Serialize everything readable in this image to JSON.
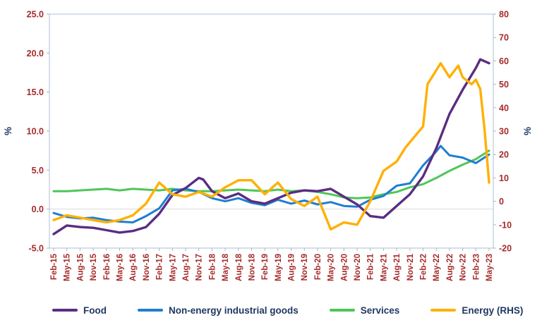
{
  "chart_data": {
    "type": "line",
    "title": "",
    "grid": false,
    "legend_position": "bottom",
    "left_axis": {
      "label": "%",
      "min": -5,
      "max": 25,
      "tick_values": [
        25,
        20,
        15,
        10,
        5,
        0,
        -5
      ],
      "tick_labels": [
        "25.0",
        "20.0",
        "15.0",
        "10.0",
        "5.0",
        "0.0",
        "-5.0"
      ]
    },
    "right_axis": {
      "label": "%",
      "min": -20,
      "max": 80,
      "tick_values": [
        80,
        70,
        60,
        50,
        40,
        30,
        20,
        10,
        0,
        -10,
        -20
      ],
      "tick_labels": [
        "80",
        "70",
        "60",
        "50",
        "40",
        "30",
        "20",
        "10",
        "0",
        "-10",
        "-20"
      ]
    },
    "x_axis": {
      "range": [
        0,
        99
      ],
      "tick_positions": [
        0,
        3,
        6,
        9,
        12,
        15,
        18,
        21,
        24,
        27,
        30,
        33,
        36,
        39,
        42,
        45,
        48,
        51,
        54,
        57,
        60,
        63,
        66,
        69,
        72,
        75,
        78,
        81,
        84,
        87,
        90,
        93,
        96,
        99
      ],
      "tick_labels": [
        "Feb-15",
        "May-15",
        "Aug-15",
        "Nov-15",
        "Feb-16",
        "May-16",
        "Aug-16",
        "Nov-16",
        "Feb-17",
        "May-17",
        "Aug-17",
        "Nov-17",
        "Feb-18",
        "May-18",
        "Aug-18",
        "Nov-18",
        "Feb-19",
        "May-19",
        "Aug-19",
        "Nov-19",
        "Feb-20",
        "May-20",
        "Aug-20",
        "Nov-20",
        "Feb-21",
        "May-21",
        "Aug-21",
        "Nov-21",
        "Feb-22",
        "May-22",
        "Aug-22",
        "Nov-22",
        "Feb-23",
        "May-23"
      ]
    },
    "series": [
      {
        "name": "Food",
        "axis": "left",
        "color": "#5A2D82",
        "x": [
          0,
          3,
          6,
          9,
          12,
          15,
          18,
          21,
          24,
          27,
          30,
          33,
          34,
          36,
          39,
          42,
          45,
          48,
          51,
          54,
          57,
          60,
          63,
          66,
          69,
          72,
          75,
          78,
          81,
          84,
          87,
          90,
          93,
          96,
          97,
          99
        ],
        "values": [
          -3.2,
          -2.1,
          -2.3,
          -2.4,
          -2.7,
          -3.0,
          -2.8,
          -2.3,
          -0.6,
          1.8,
          2.7,
          4.0,
          3.8,
          2.3,
          1.4,
          2.0,
          1.0,
          0.7,
          1.4,
          2.1,
          2.4,
          2.3,
          2.6,
          1.6,
          0.6,
          -0.9,
          -1.1,
          0.4,
          1.9,
          4.2,
          7.8,
          12.2,
          15.3,
          18.1,
          19.2,
          18.7
        ]
      },
      {
        "name": "Non-energy industrial goods",
        "axis": "left",
        "color": "#1F7ED0",
        "x": [
          0,
          3,
          6,
          9,
          12,
          15,
          18,
          21,
          24,
          27,
          30,
          33,
          36,
          39,
          42,
          45,
          48,
          51,
          54,
          57,
          60,
          63,
          66,
          69,
          72,
          75,
          78,
          81,
          84,
          87,
          88,
          90,
          93,
          96,
          99
        ],
        "values": [
          -0.5,
          -1.0,
          -1.2,
          -1.1,
          -1.4,
          -1.6,
          -1.7,
          -0.9,
          0.1,
          2.4,
          2.6,
          2.2,
          1.4,
          1.0,
          1.4,
          0.8,
          0.5,
          1.2,
          0.7,
          1.1,
          0.6,
          0.9,
          0.4,
          0.3,
          1.2,
          1.7,
          3.0,
          3.3,
          5.6,
          7.4,
          8.1,
          6.9,
          6.6,
          5.9,
          7.0
        ]
      },
      {
        "name": "Services",
        "axis": "left",
        "color": "#4FC657",
        "x": [
          0,
          3,
          6,
          9,
          12,
          15,
          18,
          21,
          24,
          27,
          30,
          33,
          36,
          39,
          42,
          45,
          48,
          51,
          54,
          57,
          60,
          63,
          66,
          69,
          72,
          75,
          78,
          81,
          84,
          87,
          90,
          93,
          96,
          99
        ],
        "values": [
          2.3,
          2.3,
          2.4,
          2.5,
          2.6,
          2.4,
          2.6,
          2.5,
          2.4,
          2.6,
          2.4,
          2.3,
          2.3,
          2.4,
          2.5,
          2.4,
          2.3,
          2.5,
          2.3,
          2.4,
          2.2,
          1.9,
          1.5,
          1.4,
          1.5,
          1.9,
          2.2,
          2.8,
          3.2,
          4.0,
          4.9,
          5.7,
          6.4,
          7.5
        ]
      },
      {
        "name": "Energy (RHS)",
        "axis": "right",
        "color": "#FFB000",
        "x": [
          0,
          3,
          6,
          9,
          12,
          15,
          18,
          21,
          24,
          27,
          30,
          33,
          36,
          39,
          42,
          45,
          48,
          51,
          54,
          57,
          60,
          63,
          66,
          69,
          72,
          75,
          78,
          80,
          84,
          85,
          88,
          90,
          92,
          93,
          95,
          96,
          97,
          98,
          99
        ],
        "values": [
          -8,
          -6,
          -7,
          -8,
          -9,
          -8,
          -6,
          -1,
          8,
          3,
          2,
          4,
          2,
          6,
          9,
          9,
          3,
          8,
          1,
          -2,
          2,
          -12,
          -9,
          -10,
          0,
          13,
          17,
          23,
          32,
          50,
          59,
          53,
          58,
          53,
          50,
          52,
          48,
          30,
          8
        ]
      }
    ]
  },
  "styles": {
    "tick_label_color": "#A52A2A",
    "axis_title_color": "#1F3864",
    "legend_text_color": "#1F3864",
    "frame_color": "#AEBFD4",
    "tick_mark_color": "#A6B7C9",
    "zero_line_color": "#D9D9D9",
    "background": "#FFFFFF"
  }
}
